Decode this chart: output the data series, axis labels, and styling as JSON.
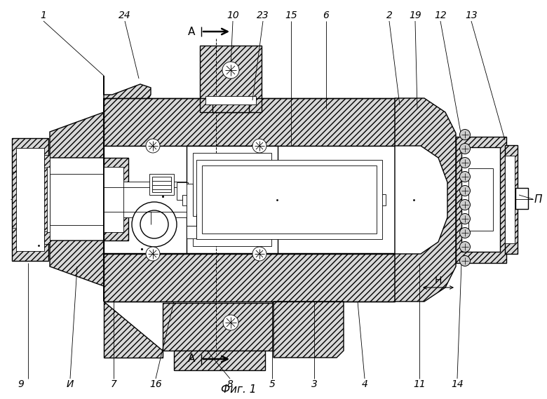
{
  "fig_caption": "Фиг. 1",
  "bg_color": "#ffffff",
  "hatch": "////",
  "top_labels": [
    [
      "1",
      62,
      22
    ],
    [
      "24",
      178,
      22
    ],
    [
      "А",
      268,
      22
    ],
    [
      "10",
      332,
      22
    ],
    [
      "23",
      375,
      22
    ],
    [
      "15",
      415,
      22
    ],
    [
      "6",
      465,
      22
    ],
    [
      "2",
      555,
      22
    ],
    [
      "19",
      592,
      22
    ],
    [
      "12",
      628,
      22
    ],
    [
      "13",
      672,
      22
    ]
  ],
  "bot_labels": [
    [
      "9",
      30,
      547
    ],
    [
      "И",
      100,
      547
    ],
    [
      "7",
      162,
      547
    ],
    [
      "16",
      222,
      547
    ],
    [
      "8",
      328,
      547
    ],
    [
      "5",
      388,
      547
    ],
    [
      "3",
      448,
      547
    ],
    [
      "4",
      520,
      547
    ],
    [
      "11",
      598,
      547
    ],
    [
      "14",
      652,
      547
    ]
  ]
}
